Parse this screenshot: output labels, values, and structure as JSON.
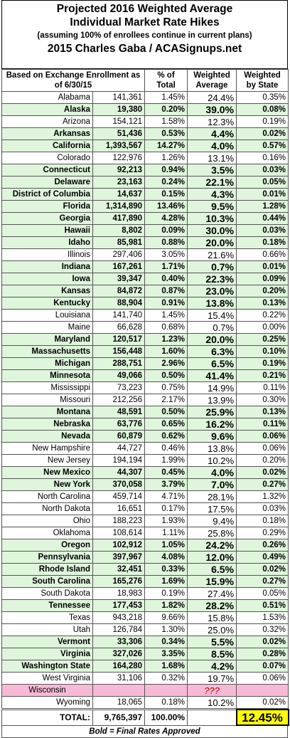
{
  "title": {
    "line1": "Projected 2016 Weighted Average",
    "line2": "Individual Market Rate Hikes",
    "line3": "(assuming 100% of enrollees continue in current plans)",
    "line4": "2015 Charles Gaba / ACASignups.net"
  },
  "columns": {
    "state": "Based on Exchange Enrollment as of 6/30/15",
    "pct_total": "% of Total",
    "weighted_avg": "Weighted Average",
    "weighted_state": "Weighted by State"
  },
  "rows": [
    {
      "state": "Alabama",
      "enrollment": "141,361",
      "pct": "1.45%",
      "avg": "24.4%",
      "ws": "0.35%",
      "final": false
    },
    {
      "state": "Alaska",
      "enrollment": "19,380",
      "pct": "0.20%",
      "avg": "39.0%",
      "ws": "0.08%",
      "final": true
    },
    {
      "state": "Arizona",
      "enrollment": "154,121",
      "pct": "1.58%",
      "avg": "12.3%",
      "ws": "0.19%",
      "final": false
    },
    {
      "state": "Arkansas",
      "enrollment": "51,436",
      "pct": "0.53%",
      "avg": "4.4%",
      "ws": "0.02%",
      "final": true
    },
    {
      "state": "California",
      "enrollment": "1,393,567",
      "pct": "14.27%",
      "avg": "4.0%",
      "ws": "0.57%",
      "final": true
    },
    {
      "state": "Colorado",
      "enrollment": "122,976",
      "pct": "1.26%",
      "avg": "13.1%",
      "ws": "0.16%",
      "final": false
    },
    {
      "state": "Connecticut",
      "enrollment": "92,213",
      "pct": "0.94%",
      "avg": "3.5%",
      "ws": "0.03%",
      "final": true
    },
    {
      "state": "Delaware",
      "enrollment": "23,163",
      "pct": "0.24%",
      "avg": "22.1%",
      "ws": "0.05%",
      "final": true
    },
    {
      "state": "District of Columbia",
      "enrollment": "14,637",
      "pct": "0.15%",
      "avg": "4.3%",
      "ws": "0.01%",
      "final": true
    },
    {
      "state": "Florida",
      "enrollment": "1,314,890",
      "pct": "13.46%",
      "avg": "9.5%",
      "ws": "1.28%",
      "final": true
    },
    {
      "state": "Georgia",
      "enrollment": "417,890",
      "pct": "4.28%",
      "avg": "10.3%",
      "ws": "0.44%",
      "final": true
    },
    {
      "state": "Hawaii",
      "enrollment": "8,802",
      "pct": "0.09%",
      "avg": "30.0%",
      "ws": "0.03%",
      "final": true
    },
    {
      "state": "Idaho",
      "enrollment": "85,981",
      "pct": "0.88%",
      "avg": "20.0%",
      "ws": "0.18%",
      "final": true
    },
    {
      "state": "Illinois",
      "enrollment": "297,406",
      "pct": "3.05%",
      "avg": "21.6%",
      "ws": "0.66%",
      "final": false
    },
    {
      "state": "Indiana",
      "enrollment": "167,261",
      "pct": "1.71%",
      "avg": "0.7%",
      "ws": "0.01%",
      "final": true
    },
    {
      "state": "Iowa",
      "enrollment": "39,347",
      "pct": "0.40%",
      "avg": "22.3%",
      "ws": "0.09%",
      "final": true
    },
    {
      "state": "Kansas",
      "enrollment": "84,872",
      "pct": "0.87%",
      "avg": "23.0%",
      "ws": "0.20%",
      "final": true
    },
    {
      "state": "Kentucky",
      "enrollment": "88,904",
      "pct": "0.91%",
      "avg": "13.8%",
      "ws": "0.13%",
      "final": true
    },
    {
      "state": "Louisiana",
      "enrollment": "141,740",
      "pct": "1.45%",
      "avg": "15.4%",
      "ws": "0.22%",
      "final": false
    },
    {
      "state": "Maine",
      "enrollment": "66,628",
      "pct": "0.68%",
      "avg": "0.7%",
      "ws": "0.00%",
      "final": false
    },
    {
      "state": "Maryland",
      "enrollment": "120,517",
      "pct": "1.23%",
      "avg": "20.0%",
      "ws": "0.25%",
      "final": true
    },
    {
      "state": "Massachusetts",
      "enrollment": "156,448",
      "pct": "1.60%",
      "avg": "6.3%",
      "ws": "0.10%",
      "final": true
    },
    {
      "state": "Michigan",
      "enrollment": "288,751",
      "pct": "2.96%",
      "avg": "6.5%",
      "ws": "0.19%",
      "final": true
    },
    {
      "state": "Minnesota",
      "enrollment": "49,066",
      "pct": "0.50%",
      "avg": "41.4%",
      "ws": "0.21%",
      "final": true
    },
    {
      "state": "Mississippi",
      "enrollment": "73,223",
      "pct": "0.75%",
      "avg": "14.9%",
      "ws": "0.11%",
      "final": false
    },
    {
      "state": "Missouri",
      "enrollment": "212,256",
      "pct": "2.17%",
      "avg": "13.9%",
      "ws": "0.30%",
      "final": false
    },
    {
      "state": "Montana",
      "enrollment": "48,591",
      "pct": "0.50%",
      "avg": "25.9%",
      "ws": "0.13%",
      "final": true
    },
    {
      "state": "Nebraska",
      "enrollment": "63,776",
      "pct": "0.65%",
      "avg": "16.2%",
      "ws": "0.11%",
      "final": true
    },
    {
      "state": "Nevada",
      "enrollment": "60,879",
      "pct": "0.62%",
      "avg": "9.6%",
      "ws": "0.06%",
      "final": true
    },
    {
      "state": "New Hampshire",
      "enrollment": "44,727",
      "pct": "0.46%",
      "avg": "13.8%",
      "ws": "0.06%",
      "final": false
    },
    {
      "state": "New Jersey",
      "enrollment": "194,194",
      "pct": "1.99%",
      "avg": "10.2%",
      "ws": "0.20%",
      "final": false
    },
    {
      "state": "New Mexico",
      "enrollment": "44,307",
      "pct": "0.45%",
      "avg": "4.0%",
      "ws": "0.02%",
      "final": true
    },
    {
      "state": "New York",
      "enrollment": "370,058",
      "pct": "3.79%",
      "avg": "7.0%",
      "ws": "0.27%",
      "final": true
    },
    {
      "state": "North Carolina",
      "enrollment": "459,714",
      "pct": "4.71%",
      "avg": "28.1%",
      "ws": "1.32%",
      "final": false
    },
    {
      "state": "North Dakota",
      "enrollment": "16,651",
      "pct": "0.17%",
      "avg": "17.5%",
      "ws": "0.03%",
      "final": false
    },
    {
      "state": "Ohio",
      "enrollment": "188,223",
      "pct": "1.93%",
      "avg": "9.4%",
      "ws": "0.18%",
      "final": false
    },
    {
      "state": "Oklahoma",
      "enrollment": "108,614",
      "pct": "1.11%",
      "avg": "25.8%",
      "ws": "0.29%",
      "final": false
    },
    {
      "state": "Oregon",
      "enrollment": "102,912",
      "pct": "1.05%",
      "avg": "24.2%",
      "ws": "0.26%",
      "final": true
    },
    {
      "state": "Pennsylvania",
      "enrollment": "397,967",
      "pct": "4.08%",
      "avg": "12.0%",
      "ws": "0.49%",
      "final": true
    },
    {
      "state": "Rhode Island",
      "enrollment": "32,451",
      "pct": "0.33%",
      "avg": "6.5%",
      "ws": "0.02%",
      "final": true
    },
    {
      "state": "South Carolina",
      "enrollment": "165,276",
      "pct": "1.69%",
      "avg": "15.9%",
      "ws": "0.27%",
      "final": true
    },
    {
      "state": "South Dakota",
      "enrollment": "18,983",
      "pct": "0.19%",
      "avg": "27.4%",
      "ws": "0.05%",
      "final": false
    },
    {
      "state": "Tennessee",
      "enrollment": "177,453",
      "pct": "1.82%",
      "avg": "28.2%",
      "ws": "0.51%",
      "final": true
    },
    {
      "state": "Texas",
      "enrollment": "943,218",
      "pct": "9.66%",
      "avg": "15.8%",
      "ws": "1.53%",
      "final": false
    },
    {
      "state": "Utah",
      "enrollment": "126,784",
      "pct": "1.30%",
      "avg": "25.0%",
      "ws": "0.32%",
      "final": false
    },
    {
      "state": "Vermont",
      "enrollment": "33,306",
      "pct": "0.34%",
      "avg": "5.5%",
      "ws": "0.02%",
      "final": true
    },
    {
      "state": "Virginia",
      "enrollment": "327,026",
      "pct": "3.35%",
      "avg": "8.5%",
      "ws": "0.28%",
      "final": true
    },
    {
      "state": "Washington State",
      "enrollment": "164,280",
      "pct": "1.68%",
      "avg": "4.2%",
      "ws": "0.07%",
      "final": true
    },
    {
      "state": "West Virginia",
      "enrollment": "31,106",
      "pct": "0.32%",
      "avg": "19.7%",
      "ws": "0.06%",
      "final": false
    },
    {
      "state": "Wisconsin",
      "enrollment": "",
      "pct": "",
      "avg": "???",
      "ws": "",
      "final": false,
      "pink": true
    },
    {
      "state": "Wyoming",
      "enrollment": "18,065",
      "pct": "0.18%",
      "avg": "10.2%",
      "ws": "0.02%",
      "final": false
    }
  ],
  "total": {
    "label": "TOTAL:",
    "enrollment": "9,765,397",
    "pct": "100.00%",
    "weighted": "12.45%"
  },
  "footer": "Bold = Final Rates Approved",
  "colors": {
    "final_row": "#dff5dc",
    "wisconsin_row": "#f7b9d6",
    "total_highlight": "#ffff00"
  }
}
